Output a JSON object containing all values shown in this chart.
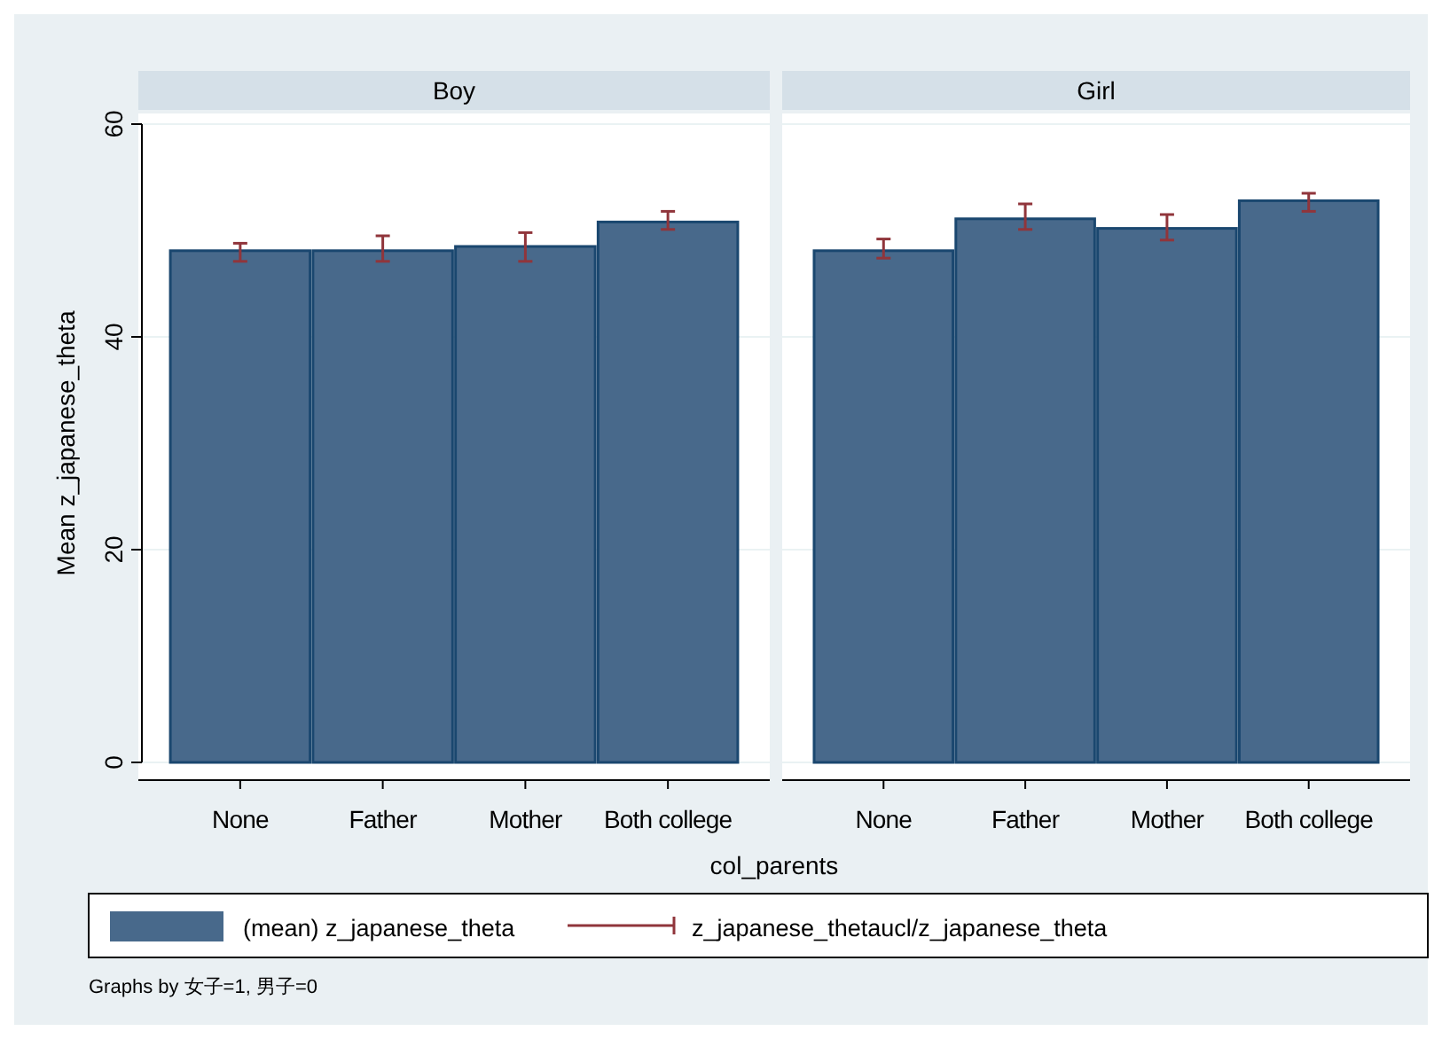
{
  "chart_data": [
    {
      "type": "bar",
      "title": "Boy",
      "categories": [
        "None",
        "Father",
        "Mother",
        "Both college"
      ],
      "xlabel": "col_parents",
      "ylabel": "Mean z_japanese_theta",
      "series": [
        {
          "name": "(mean) z_japanese_theta",
          "color": "#48698b",
          "values": [
            48.1,
            48.1,
            48.5,
            50.8
          ],
          "errors": [
            [
              47.1,
              48.8
            ],
            [
              47.1,
              49.5
            ],
            [
              47.1,
              49.8
            ],
            [
              50.1,
              51.8
            ]
          ]
        }
      ],
      "ylim": [
        0,
        60
      ],
      "yticks": [
        0,
        20,
        40,
        60
      ],
      "grid": "y",
      "legend": "bottom",
      "annotations": [
        "z_japanese_thetaucl/z_japanese_theta",
        "Graphs by 女子=1, 男子=0"
      ]
    },
    {
      "type": "bar",
      "title": "Girl",
      "categories": [
        "None",
        "Father",
        "Mother",
        "Both college"
      ],
      "series": [
        {
          "color": "#48698b",
          "values": [
            48.1,
            51.1,
            50.2,
            52.8
          ],
          "errors": [
            [
              47.4,
              49.2
            ],
            [
              50.1,
              52.5
            ],
            [
              49.1,
              51.5
            ],
            [
              51.8,
              53.5
            ]
          ]
        }
      ],
      "ylim": [
        0,
        60
      ],
      "yticks": [
        0,
        20,
        40,
        60
      ],
      "grid": "y",
      "tick_labels": "x"
    }
  ]
}
